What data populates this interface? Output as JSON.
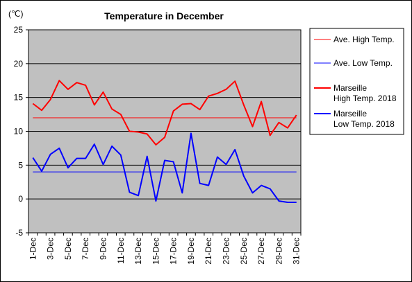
{
  "chart_data": {
    "type": "line",
    "title": "Temperature in December",
    "unit_label": "(℃)",
    "ylim": [
      -5,
      25
    ],
    "yticks": [
      -5,
      0,
      5,
      10,
      15,
      20,
      25
    ],
    "x": [
      "1-Dec",
      "2-Dec",
      "3-Dec",
      "4-Dec",
      "5-Dec",
      "6-Dec",
      "7-Dec",
      "8-Dec",
      "9-Dec",
      "10-Dec",
      "11-Dec",
      "12-Dec",
      "13-Dec",
      "14-Dec",
      "15-Dec",
      "16-Dec",
      "17-Dec",
      "18-Dec",
      "19-Dec",
      "20-Dec",
      "21-Dec",
      "22-Dec",
      "23-Dec",
      "24-Dec",
      "25-Dec",
      "26-Dec",
      "27-Dec",
      "28-Dec",
      "29-Dec",
      "30-Dec",
      "31-Dec"
    ],
    "xtick_labels": [
      "1-Dec",
      "3-Dec",
      "5-Dec",
      "7-Dec",
      "9-Dec",
      "11-Dec",
      "13-Dec",
      "15-Dec",
      "17-Dec",
      "19-Dec",
      "21-Dec",
      "23-Dec",
      "25-Dec",
      "27-Dec",
      "29-Dec",
      "31-Dec"
    ],
    "grid": true,
    "plot_background": "#c0c0c0",
    "legend_position": "right",
    "series": [
      {
        "name": "Ave. High Temp.",
        "color": "#ff0000",
        "width": 1,
        "values": [
          12,
          12,
          12,
          12,
          12,
          12,
          12,
          12,
          12,
          12,
          12,
          12,
          12,
          12,
          12,
          12,
          12,
          12,
          12,
          12,
          12,
          12,
          12,
          12,
          12,
          12,
          12,
          12,
          12,
          12,
          12
        ]
      },
      {
        "name": "Ave. Low Temp.",
        "color": "#0000ff",
        "width": 1,
        "values": [
          4,
          4,
          4,
          4,
          4,
          4,
          4,
          4,
          4,
          4,
          4,
          4,
          4,
          4,
          4,
          4,
          4,
          4,
          4,
          4,
          4,
          4,
          4,
          4,
          4,
          4,
          4,
          4,
          4,
          4,
          4
        ]
      },
      {
        "name": "Marseille High Temp. 2018",
        "legend_lines": [
          "Marseille",
          "High Temp. 2018"
        ],
        "color": "#ff0000",
        "width": 2,
        "values": [
          14.1,
          13.1,
          14.7,
          17.5,
          16.2,
          17.2,
          16.8,
          13.9,
          15.8,
          13.3,
          12.5,
          10,
          9.9,
          9.6,
          8,
          9.1,
          13,
          14,
          14.1,
          13.2,
          15.2,
          15.6,
          16.2,
          17.4,
          13.9,
          10.7,
          14.4,
          9.4,
          11.3,
          10.5,
          12.4
        ]
      },
      {
        "name": "Marseille Low Temp. 2018",
        "legend_lines": [
          "Marseille",
          "Low Temp. 2018"
        ],
        "color": "#0000ff",
        "width": 2,
        "values": [
          6.1,
          4.1,
          6.6,
          7.5,
          4.6,
          6,
          6,
          8.1,
          5.1,
          7.8,
          6.5,
          1,
          0.5,
          6.3,
          -0.3,
          5.7,
          5.5,
          0.9,
          9.7,
          2.3,
          2,
          6.2,
          5.1,
          7.3,
          3.4,
          0.9,
          2,
          1.5,
          -0.3,
          -0.5,
          -0.5
        ]
      }
    ]
  }
}
